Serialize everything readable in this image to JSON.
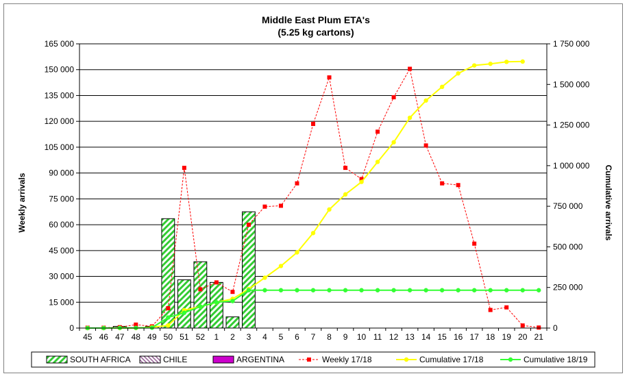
{
  "chart_data": {
    "type": "bar",
    "title": "Middle East Plum ETA's",
    "subtitle": "(5.25 kg cartons)",
    "ylabel": "Weekly arrivals",
    "y2label": "Cumulative arrivals",
    "ylim": [
      0,
      165000
    ],
    "y2lim": [
      0,
      1750000
    ],
    "yticks": [
      "0",
      "15 000",
      "30 000",
      "45 000",
      "60 000",
      "75 000",
      "90 000",
      "105 000",
      "120 000",
      "135 000",
      "150 000",
      "165 000"
    ],
    "y2ticks": [
      "0",
      "250 000",
      "500 000",
      "750 000",
      "1 000 000",
      "1 250 000",
      "1 500 000",
      "1 750 000"
    ],
    "categories": [
      "45",
      "46",
      "47",
      "48",
      "49",
      "50",
      "51",
      "52",
      "1",
      "2",
      "3",
      "4",
      "5",
      "6",
      "7",
      "8",
      "9",
      "10",
      "11",
      "12",
      "13",
      "14",
      "15",
      "16",
      "17",
      "18",
      "19",
      "20",
      "21"
    ],
    "grid": "horizontal",
    "legend_position": "bottom",
    "series": [
      {
        "name": "SOUTH AFRICA",
        "kind": "bar",
        "axis": "left",
        "color": "#33cc33",
        "values": [
          0,
          0,
          1000,
          0,
          1000,
          63500,
          28000,
          38500,
          26500,
          6500,
          67500,
          0,
          0,
          0,
          0,
          0,
          0,
          0,
          0,
          0,
          0,
          0,
          0,
          0,
          0,
          0,
          0,
          0,
          0
        ]
      },
      {
        "name": "CHILE",
        "kind": "bar",
        "axis": "left",
        "color": "#996699",
        "values": [
          0,
          0,
          0,
          0,
          0,
          0,
          0,
          0,
          0,
          0,
          0,
          0,
          0,
          0,
          0,
          0,
          0,
          0,
          0,
          0,
          0,
          0,
          0,
          0,
          0,
          0,
          0,
          0,
          0
        ]
      },
      {
        "name": "ARGENTINA",
        "kind": "bar",
        "axis": "left",
        "color": "#cc00cc",
        "values": [
          0,
          0,
          0,
          0,
          0,
          0,
          0,
          0,
          0,
          0,
          0,
          0,
          0,
          0,
          0,
          0,
          0,
          0,
          0,
          0,
          0,
          0,
          0,
          0,
          0,
          0,
          0,
          0,
          0
        ]
      },
      {
        "name": "Weekly 17/18",
        "kind": "line",
        "axis": "left",
        "color": "#ff0000",
        "dashed": true,
        "values": [
          200,
          200,
          500,
          2000,
          1000,
          11500,
          93000,
          22500,
          26500,
          21000,
          60000,
          70500,
          71000,
          84000,
          118500,
          145500,
          93000,
          86500,
          114000,
          134000,
          150500,
          106000,
          84000,
          83000,
          49000,
          10500,
          12000,
          1500,
          300
        ]
      },
      {
        "name": "Cumulative 17/18",
        "kind": "line",
        "axis": "right",
        "color": "#ffff00",
        "values": [
          0,
          0,
          0,
          0,
          5000,
          16000,
          110000,
          132000,
          158000,
          180000,
          240000,
          310000,
          382000,
          466000,
          585000,
          730000,
          823000,
          900000,
          1023000,
          1144000,
          1295000,
          1401000,
          1485000,
          1568000,
          1617000,
          1627000,
          1639000,
          1641000,
          null
        ]
      },
      {
        "name": "Cumulative 18/19",
        "kind": "line",
        "axis": "right",
        "color": "#33ff33",
        "values": [
          0,
          0,
          1000,
          1000,
          2000,
          65000,
          94000,
          132000,
          159000,
          166000,
          233000,
          233000,
          233000,
          233000,
          233000,
          233000,
          233000,
          233000,
          233000,
          233000,
          233000,
          233000,
          233000,
          233000,
          233000,
          233000,
          233000,
          233000,
          233000
        ]
      }
    ]
  }
}
